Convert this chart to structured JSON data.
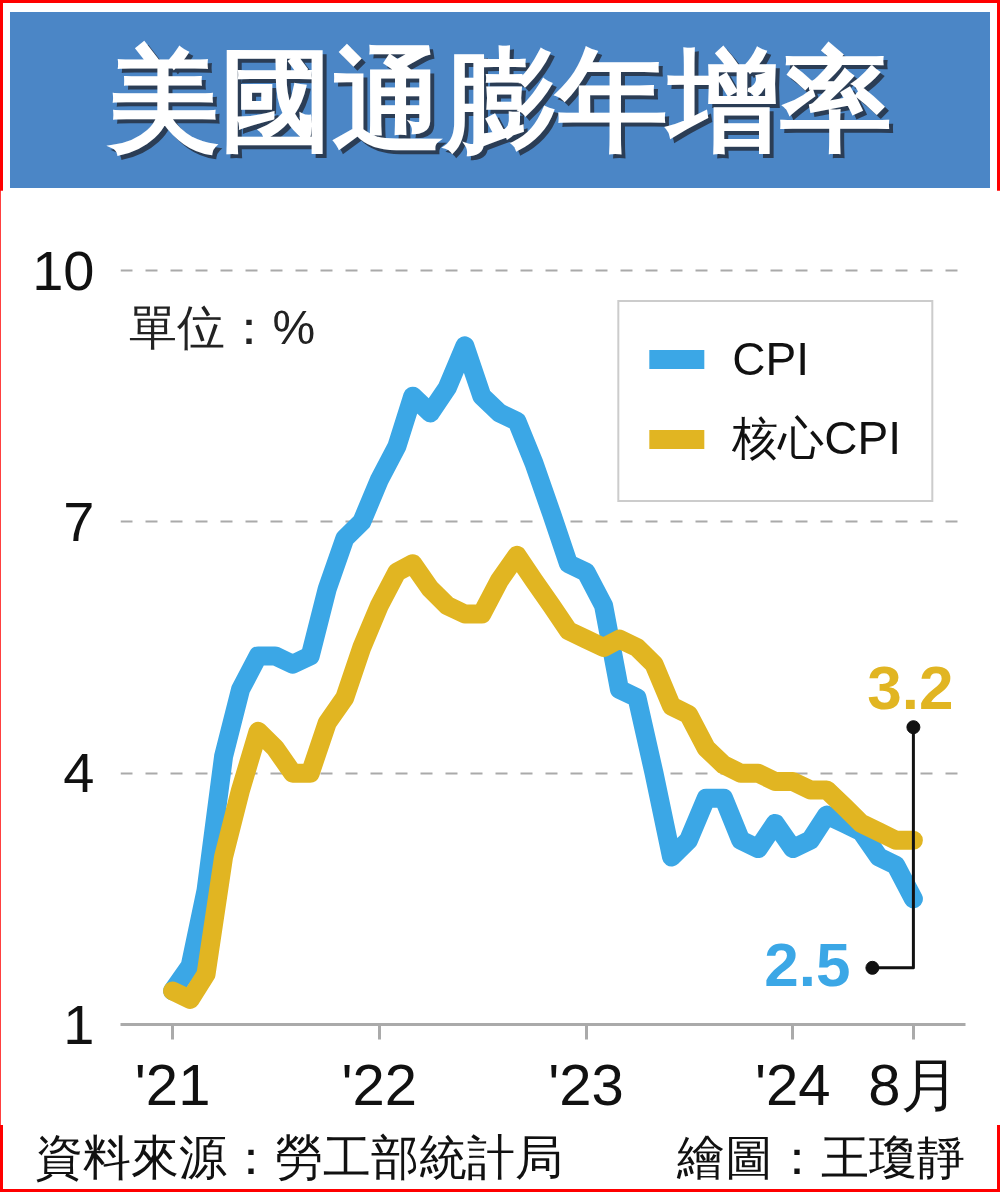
{
  "chart_data": {
    "type": "line",
    "title": "美國通膨年增率",
    "x": [
      "2021-01",
      "2021-02",
      "2021-03",
      "2021-04",
      "2021-05",
      "2021-06",
      "2021-07",
      "2021-08",
      "2021-09",
      "2021-10",
      "2021-11",
      "2021-12",
      "2022-01",
      "2022-02",
      "2022-03",
      "2022-04",
      "2022-05",
      "2022-06",
      "2022-07",
      "2022-08",
      "2022-09",
      "2022-10",
      "2022-11",
      "2022-12",
      "2023-01",
      "2023-02",
      "2023-03",
      "2023-04",
      "2023-05",
      "2023-06",
      "2023-07",
      "2023-08",
      "2023-09",
      "2023-10",
      "2023-11",
      "2023-12",
      "2024-01",
      "2024-02",
      "2024-03",
      "2024-04",
      "2024-05",
      "2024-06",
      "2024-07",
      "2024-08"
    ],
    "series": [
      {
        "name": "CPI",
        "color": "#3ba7e6",
        "values": [
          1.4,
          1.7,
          2.6,
          4.2,
          5.0,
          5.4,
          5.4,
          5.3,
          5.4,
          6.2,
          6.8,
          7.0,
          7.5,
          7.9,
          8.5,
          8.3,
          8.6,
          9.1,
          8.5,
          8.3,
          8.2,
          7.7,
          7.1,
          6.5,
          6.4,
          6.0,
          5.0,
          4.9,
          4.0,
          3.0,
          3.2,
          3.7,
          3.7,
          3.2,
          3.1,
          3.4,
          3.1,
          3.2,
          3.5,
          3.4,
          3.3,
          3.0,
          2.9,
          2.5
        ],
        "value_labels": [
          null,
          null,
          null,
          null,
          null,
          null,
          null,
          null,
          null,
          null,
          null,
          null,
          null,
          null,
          null,
          null,
          null,
          null,
          null,
          null,
          null,
          null,
          null,
          null,
          null,
          null,
          null,
          null,
          null,
          null,
          null,
          null,
          null,
          null,
          null,
          null,
          null,
          null,
          null,
          null,
          null,
          null,
          null,
          "2.5"
        ]
      },
      {
        "name": "核心CPI",
        "color": "#e1b522",
        "values": [
          1.4,
          1.3,
          1.6,
          3.0,
          3.8,
          4.5,
          4.3,
          4.0,
          4.0,
          4.6,
          4.9,
          5.5,
          6.0,
          6.4,
          6.5,
          6.2,
          6.0,
          5.9,
          5.9,
          6.3,
          6.6,
          6.3,
          6.0,
          5.7,
          5.6,
          5.5,
          5.6,
          5.5,
          5.3,
          4.8,
          4.7,
          4.3,
          4.1,
          4.0,
          4.0,
          3.9,
          3.9,
          3.8,
          3.8,
          3.6,
          3.4,
          3.3,
          3.2,
          3.2
        ],
        "value_labels": [
          null,
          null,
          null,
          null,
          null,
          null,
          null,
          null,
          null,
          null,
          null,
          null,
          null,
          null,
          null,
          null,
          null,
          null,
          null,
          null,
          null,
          null,
          null,
          null,
          null,
          null,
          null,
          null,
          null,
          null,
          null,
          null,
          null,
          null,
          null,
          null,
          null,
          null,
          null,
          null,
          null,
          null,
          null,
          "3.2"
        ]
      }
    ],
    "xlim": [
      "2020-10",
      "2024-11"
    ],
    "xticks": [
      {
        "value": "2021-01",
        "label": "'21"
      },
      {
        "value": "2022-01",
        "label": "'22"
      },
      {
        "value": "2023-01",
        "label": "'23"
      },
      {
        "value": "2024-01",
        "label": "'24"
      },
      {
        "value": "2024-08",
        "label": "8月"
      }
    ],
    "ylim": [
      1,
      10
    ],
    "yticks": [
      1,
      4,
      7,
      10
    ],
    "grid": "y",
    "legend": "top right",
    "line_style": "solid",
    "annotations": [
      "單位：%",
      "資料來源：勞工部統計局",
      "繪圖：王瓊靜"
    ]
  }
}
